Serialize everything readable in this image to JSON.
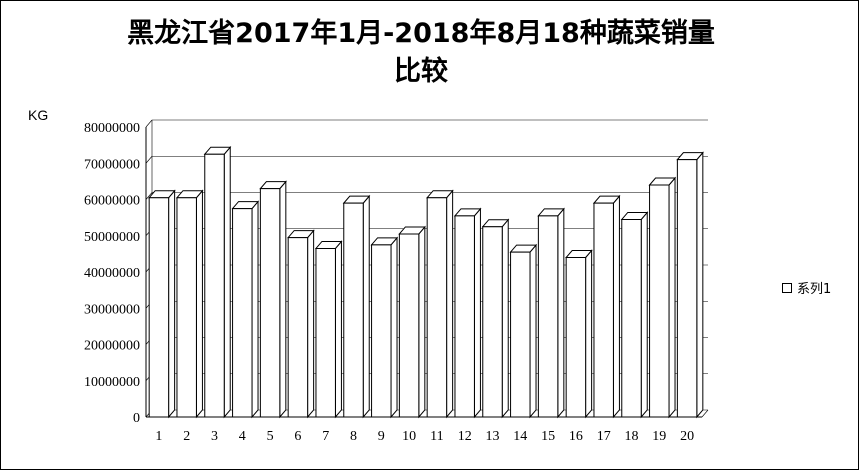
{
  "chart_data": {
    "type": "bar",
    "title": "黑龙江省2017年1月-2018年8月18种蔬菜销量比较",
    "ylabel": "KG",
    "xlabel": "",
    "categories": [
      "1",
      "2",
      "3",
      "4",
      "5",
      "6",
      "7",
      "8",
      "9",
      "10",
      "11",
      "12",
      "13",
      "14",
      "15",
      "16",
      "17",
      "18",
      "19",
      "20"
    ],
    "series": [
      {
        "name": "系列1",
        "values": [
          60500000,
          60500000,
          72500000,
          57500000,
          63000000,
          49500000,
          46500000,
          59000000,
          47500000,
          50500000,
          60500000,
          55500000,
          52500000,
          45500000,
          55500000,
          44000000,
          59000000,
          54500000,
          64000000,
          71000000
        ]
      }
    ],
    "ylim": [
      0,
      80000000
    ],
    "yticks": [
      "0",
      "10000000",
      "20000000",
      "30000000",
      "40000000",
      "50000000",
      "60000000",
      "70000000",
      "80000000"
    ],
    "grid": true,
    "legend": "right",
    "bar_style": "3d",
    "colors": {
      "bar_fill": "#ffffff",
      "bar_stroke": "#000000",
      "grid": "#000000"
    }
  }
}
